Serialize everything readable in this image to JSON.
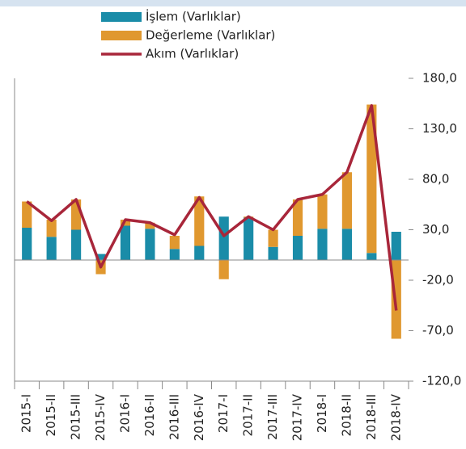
{
  "chart_data": {
    "type": "bar",
    "stacked": true,
    "categories": [
      "2015-I",
      "2015-II",
      "2015-III",
      "2015-IV",
      "2016-I",
      "2016-II",
      "2016-III",
      "2016-IV",
      "2017-I",
      "2017-II",
      "2017-III",
      "2017-IV",
      "2018-I",
      "2018-II",
      "2018-III",
      "2018-IV"
    ],
    "series": [
      {
        "name": "İşlem (Varlıklar)",
        "type": "bar",
        "color": "#1a8ca8",
        "values": [
          32,
          23,
          30,
          6,
          34,
          31,
          11,
          14,
          43,
          42,
          13,
          24,
          31,
          31,
          7,
          28
        ]
      },
      {
        "name": "Değerleme (Varlıklar)",
        "type": "bar",
        "color": "#e0982f",
        "values": [
          26,
          17,
          30,
          -14,
          6,
          6,
          13,
          49,
          -19,
          1,
          17,
          36,
          34,
          56,
          147,
          -78
        ]
      },
      {
        "name": "Akım (Varlıklar)",
        "type": "line",
        "color": "#a8263a",
        "values": [
          58,
          39,
          60,
          -7,
          40,
          37,
          25,
          62,
          24,
          43,
          30,
          60,
          65,
          87,
          153,
          -50
        ]
      }
    ],
    "ylim": [
      -120,
      180
    ],
    "yticks": [
      {
        "value": -120,
        "label": "-120,0"
      },
      {
        "value": -70,
        "label": "-70,0"
      },
      {
        "value": -20,
        "label": "-20,0"
      },
      {
        "value": 30,
        "label": "30,0"
      },
      {
        "value": 80,
        "label": "80,0"
      },
      {
        "value": 130,
        "label": "130,0"
      },
      {
        "value": 180,
        "label": "180,0"
      }
    ],
    "grid": false,
    "legend": "top"
  }
}
